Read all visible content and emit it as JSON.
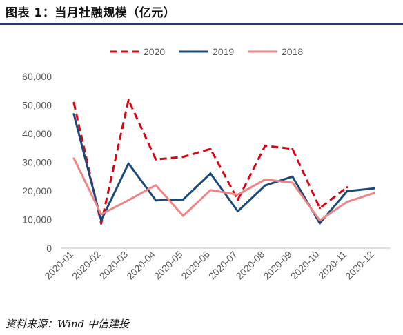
{
  "figure": {
    "title": "图表 1：当月社融规模（亿元）",
    "source": "资料来源：Wind    中信建投"
  },
  "chart_data": {
    "type": "line",
    "title": "",
    "xlabel": "",
    "ylabel": "",
    "categories": [
      "2020-01",
      "2020-02",
      "2020-03",
      "2020-04",
      "2020-05",
      "2020-06",
      "2020-07",
      "2020-08",
      "2020-09",
      "2020-10",
      "2020-11",
      "2020-12"
    ],
    "ylim": [
      0,
      60000
    ],
    "yticks": [
      "0",
      "10,000",
      "20,000",
      "30,000",
      "40,000",
      "50,000",
      "60,000"
    ],
    "grid": false,
    "legend_position": "top",
    "series": [
      {
        "name": "2020",
        "color": "#e0000f",
        "dash": true,
        "values": [
          50800,
          8600,
          51800,
          31000,
          31900,
          34700,
          16900,
          35800,
          34700,
          14000,
          21300,
          null
        ]
      },
      {
        "name": "2019",
        "color": "#1a4a7a",
        "dash": false,
        "values": [
          46800,
          9700,
          29600,
          16700,
          17000,
          26100,
          12900,
          21900,
          25000,
          8700,
          19900,
          20900
        ]
      },
      {
        "name": "2018",
        "color": "#f08585",
        "dash": false,
        "values": [
          31400,
          11800,
          16800,
          22000,
          11300,
          20300,
          18700,
          24000,
          22900,
          9700,
          16200,
          19300
        ]
      }
    ]
  }
}
